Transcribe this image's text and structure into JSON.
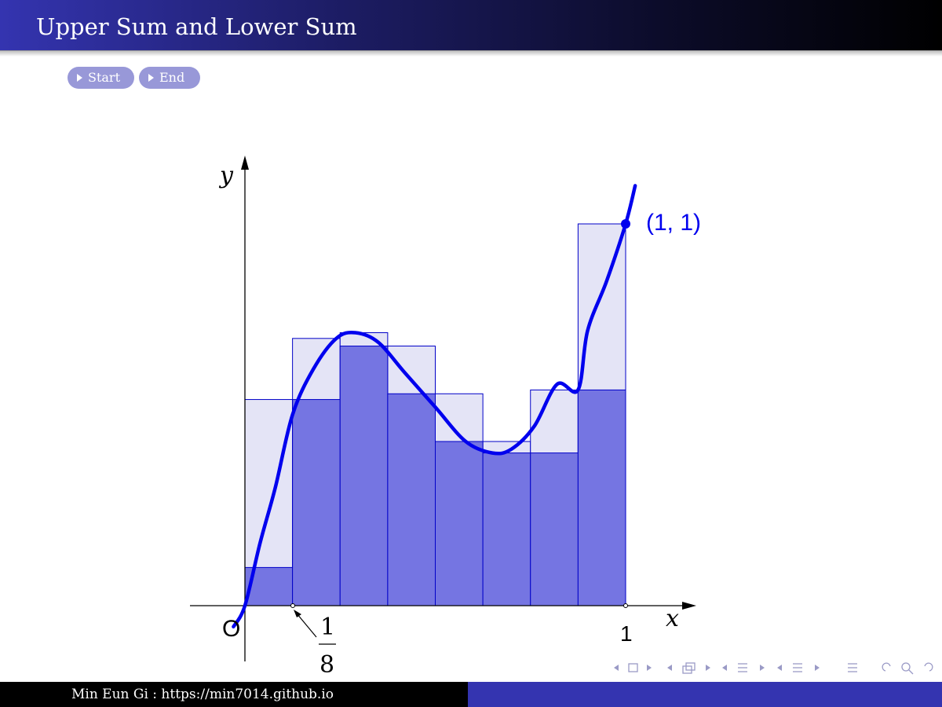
{
  "header": {
    "title": "Upper Sum and Lower Sum"
  },
  "nav_buttons": {
    "start": "Start",
    "end": "End"
  },
  "footer": {
    "author": "Min Eun Gi : https://min7014.github.io"
  },
  "colors": {
    "curve": "#0000ee",
    "upper_fill": "#e4e4f6",
    "lower_fill": "#7575e2",
    "rect_stroke": "#0000c8",
    "title_bar_start": "#3434b0",
    "footer_right": "#3434b0"
  },
  "icons": [
    "nav-frame-prev-icon",
    "nav-frame-next-icon",
    "nav-subsection-icon",
    "nav-section-icon",
    "nav-doc-icon",
    "nav-toc-icon",
    "search-icon",
    "back-forward-icon"
  ],
  "chart_data": {
    "type": "bar",
    "description_of_scale": "unitless",
    "x_label": "x",
    "y_label": "y",
    "origin_label": "O",
    "tick_label_x1": "1",
    "tick_label_eighth_num": "1",
    "tick_label_eighth_den": "8",
    "point_label": "(1, 1)",
    "point": [
      1,
      1
    ],
    "x_range": [
      -0.113,
      1.178
    ],
    "y_range": [
      -0.148,
      1.11
    ],
    "partition": [
      0,
      0.125,
      0.25,
      0.375,
      0.5,
      0.625,
      0.75,
      0.875,
      1
    ],
    "upper_sum_heights": [
      0.54,
      0.7,
      0.715,
      0.68,
      0.555,
      0.43,
      0.565,
      1.0
    ],
    "lower_sum_heights": [
      0.1,
      0.54,
      0.68,
      0.555,
      0.43,
      0.4,
      0.4,
      0.565
    ],
    "curve_points": [
      [
        -0.03,
        -0.055
      ],
      [
        0,
        0.0
      ],
      [
        0.04,
        0.165
      ],
      [
        0.08,
        0.31
      ],
      [
        0.125,
        0.5
      ],
      [
        0.18,
        0.62
      ],
      [
        0.24,
        0.7
      ],
      [
        0.29,
        0.715
      ],
      [
        0.35,
        0.69
      ],
      [
        0.42,
        0.61
      ],
      [
        0.5,
        0.52
      ],
      [
        0.58,
        0.43
      ],
      [
        0.65,
        0.4
      ],
      [
        0.7,
        0.41
      ],
      [
        0.76,
        0.47
      ],
      [
        0.82,
        0.58
      ],
      [
        0.875,
        0.565
      ],
      [
        0.9,
        0.72
      ],
      [
        0.95,
        0.85
      ],
      [
        1.0,
        1.0
      ],
      [
        1.025,
        1.1
      ]
    ],
    "grid": false,
    "legend": "none"
  }
}
